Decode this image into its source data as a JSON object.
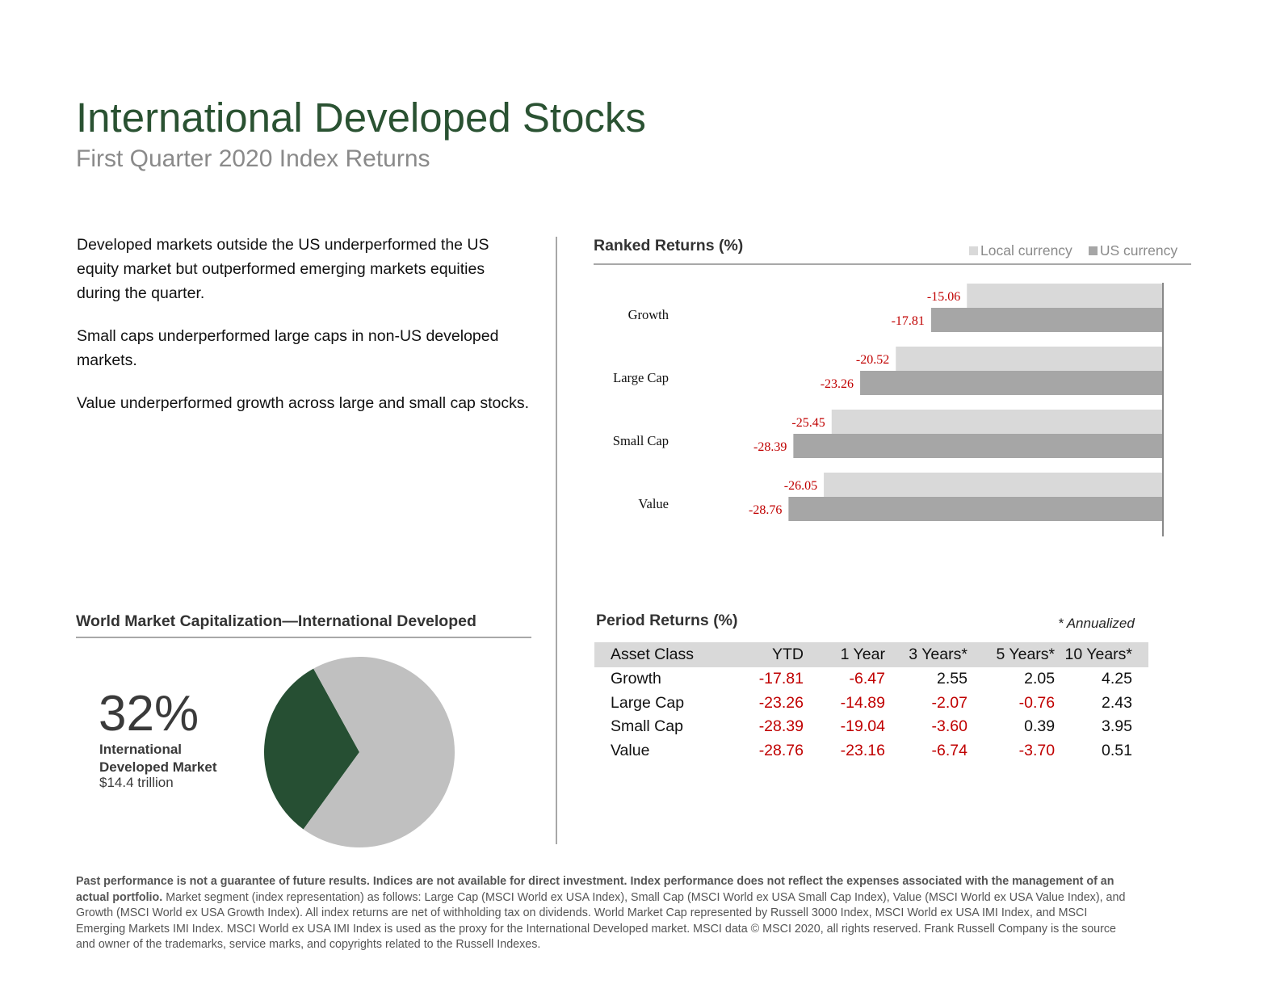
{
  "header": {
    "title": "International Developed Stocks",
    "subtitle": "First Quarter 2020 Index Returns"
  },
  "commentary": [
    "Developed markets outside the US underperformed the US equity market but outperformed emerging markets equities during the quarter.",
    "Small caps underperformed large caps in non-US developed markets.",
    "Value underperformed growth across large and small cap stocks."
  ],
  "colors": {
    "title_green": "#2a5232",
    "pie_green": "#264f33",
    "pie_gray": "#c0c0c0",
    "local_bar": "#d9d9d9",
    "us_bar": "#a6a6a6",
    "negative_red": "#c00000"
  },
  "ranked_returns": {
    "title": "Ranked Returns (%)",
    "legend_local": "Local currency",
    "legend_us": "US currency"
  },
  "world_market": {
    "title": "World Market Capitalization—International Developed",
    "percent_label": "32%",
    "label": "International Developed Market",
    "value": "$14.4 trillion"
  },
  "period_returns": {
    "title": "Period Returns (%)",
    "note": "* Annualized",
    "columns": [
      "Asset Class",
      "YTD",
      "1 Year",
      "3 Years*",
      "5 Years*",
      "10 Years*"
    ],
    "rows": [
      [
        "Growth",
        "-17.81",
        "-6.47",
        "2.55",
        "2.05",
        "4.25"
      ],
      [
        "Large Cap",
        "-23.26",
        "-14.89",
        "-2.07",
        "-0.76",
        "2.43"
      ],
      [
        "Small Cap",
        "-28.39",
        "-19.04",
        "-3.60",
        "0.39",
        "3.95"
      ],
      [
        "Value",
        "-28.76",
        "-23.16",
        "-6.74",
        "-3.70",
        "0.51"
      ]
    ]
  },
  "footnote": {
    "bold": "Past performance is not a guarantee of future results. Indices are not available for direct investment. Index performance does not reflect the expenses associated with the management of an actual portfolio.",
    "text": " Market segment (index representation) as follows: Large Cap (MSCI World ex USA Index), Small Cap (MSCI World ex USA Small Cap Index), Value (MSCI World ex USA Value Index), and Growth (MSCI World ex USA Growth Index). All index returns are net of withholding tax on dividends. World Market Cap represented by Russell 3000 Index, MSCI World ex USA IMI Index, and MSCI Emerging Markets IMI Index. MSCI World ex USA IMI Index is used as the proxy for the International Developed market. MSCI data © MSCI 2020, all rights reserved. Frank Russell Company is the source and owner of the trademarks, service marks, and copyrights related to the Russell Indexes."
  },
  "chart_data": [
    {
      "type": "bar",
      "orientation": "horizontal",
      "title": "Ranked Returns (%)",
      "categories": [
        "Growth",
        "Large Cap",
        "Small Cap",
        "Value"
      ],
      "series": [
        {
          "name": "Local currency",
          "values": [
            -15.06,
            -20.52,
            -25.45,
            -26.05
          ],
          "color": "#d9d9d9"
        },
        {
          "name": "US currency",
          "values": [
            -17.81,
            -23.26,
            -28.39,
            -28.76
          ],
          "color": "#a6a6a6"
        }
      ],
      "xlim": [
        -30,
        0
      ],
      "legend": "top-right",
      "grid": false
    },
    {
      "type": "pie",
      "title": "World Market Capitalization—International Developed",
      "slices": [
        {
          "label": "International Developed Market",
          "value": 32,
          "color": "#264f33"
        },
        {
          "value": 68,
          "color": "#c0c0c0"
        }
      ]
    }
  ]
}
